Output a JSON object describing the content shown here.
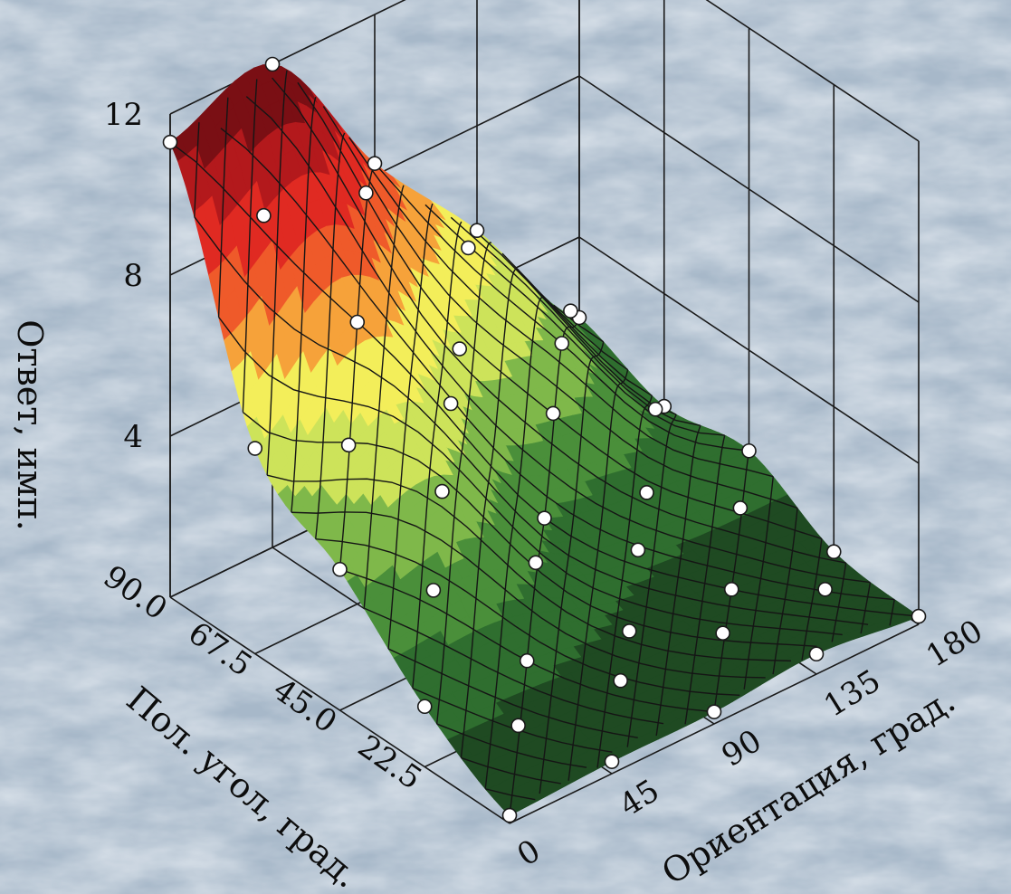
{
  "chart_data": {
    "type": "surface3d",
    "title": "",
    "zlabel": "Ответ, имп.",
    "xlabel": "Ориентация, град.",
    "ylabel": "Пол. угол, град.",
    "zlim": [
      0,
      12
    ],
    "z_ticks": [
      "4",
      "8",
      "12"
    ],
    "x_ticks": [
      "0",
      "45",
      "90",
      "135",
      "180"
    ],
    "y_ticks": [
      "22.5",
      "45.0",
      "67.5",
      "90.0"
    ],
    "x": [
      0,
      45,
      90,
      135,
      180
    ],
    "y": [
      0,
      22.5,
      45.0,
      67.5,
      90.0
    ],
    "z": [
      [
        0.2,
        0.3,
        0.3,
        0.5,
        0.2
      ],
      [
        1.5,
        1.4,
        0.9,
        0.7,
        0.4
      ],
      [
        3.5,
        4.2,
        2.3,
        1.7,
        1.5
      ],
      [
        5.1,
        7.0,
        5.1,
        4.0,
        1.2
      ],
      [
        11.3,
        12.0,
        8.3,
        5.4,
        2.0
      ]
    ],
    "colormap": [
      "#1f4a22",
      "#2f6e2f",
      "#4a8f3a",
      "#7fb84a",
      "#cde35a",
      "#f3ee5a",
      "#f6a23a",
      "#ef5a2a",
      "#e02a22",
      "#b3191c",
      "#7a0f14"
    ],
    "background": "#a5b7c8",
    "grid": true
  }
}
